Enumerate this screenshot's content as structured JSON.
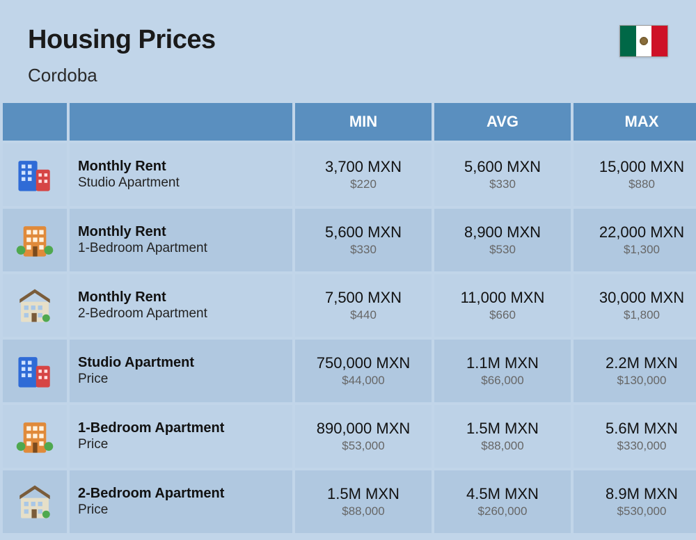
{
  "header": {
    "title": "Housing Prices",
    "subtitle": "Cordoba"
  },
  "columns": {
    "min": "MIN",
    "avg": "AVG",
    "max": "MAX"
  },
  "rows": [
    {
      "icon": "buildings-blue-red",
      "title": "Monthly Rent",
      "subtitle": "Studio Apartment",
      "min": {
        "mxn": "3,700 MXN",
        "usd": "$220"
      },
      "avg": {
        "mxn": "5,600 MXN",
        "usd": "$330"
      },
      "max": {
        "mxn": "15,000 MXN",
        "usd": "$880"
      }
    },
    {
      "icon": "building-orange",
      "title": "Monthly Rent",
      "subtitle": "1-Bedroom Apartment",
      "min": {
        "mxn": "5,600 MXN",
        "usd": "$330"
      },
      "avg": {
        "mxn": "8,900 MXN",
        "usd": "$530"
      },
      "max": {
        "mxn": "22,000 MXN",
        "usd": "$1,300"
      }
    },
    {
      "icon": "house-beige",
      "title": "Monthly Rent",
      "subtitle": "2-Bedroom Apartment",
      "min": {
        "mxn": "7,500 MXN",
        "usd": "$440"
      },
      "avg": {
        "mxn": "11,000 MXN",
        "usd": "$660"
      },
      "max": {
        "mxn": "30,000 MXN",
        "usd": "$1,800"
      }
    },
    {
      "icon": "buildings-blue-red",
      "title": "Studio Apartment",
      "subtitle": "Price",
      "min": {
        "mxn": "750,000 MXN",
        "usd": "$44,000"
      },
      "avg": {
        "mxn": "1.1M MXN",
        "usd": "$66,000"
      },
      "max": {
        "mxn": "2.2M MXN",
        "usd": "$130,000"
      }
    },
    {
      "icon": "building-orange",
      "title": "1-Bedroom Apartment",
      "subtitle": "Price",
      "min": {
        "mxn": "890,000 MXN",
        "usd": "$53,000"
      },
      "avg": {
        "mxn": "1.5M MXN",
        "usd": "$88,000"
      },
      "max": {
        "mxn": "5.6M MXN",
        "usd": "$330,000"
      }
    },
    {
      "icon": "house-beige",
      "title": "2-Bedroom Apartment",
      "subtitle": "Price",
      "min": {
        "mxn": "1.5M MXN",
        "usd": "$88,000"
      },
      "avg": {
        "mxn": "4.5M MXN",
        "usd": "$260,000"
      },
      "max": {
        "mxn": "8.9M MXN",
        "usd": "$530,000"
      }
    }
  ],
  "styling": {
    "page_bg": "#c1d5e9",
    "header_bg": "#5a8fbf",
    "row_bg_a": "#bdd2e7",
    "row_bg_b": "#b0c8e0",
    "title_color": "#1a1a1a",
    "value_color": "#111111",
    "sub_value_color": "#666666",
    "title_fontsize": 38,
    "subtitle_fontsize": 26,
    "col_header_fontsize": 22,
    "row_title_fontsize": 20,
    "value_fontsize": 22,
    "sub_value_fontsize": 17,
    "icon_colors": {
      "buildings-blue-red": {
        "a": "#2f6bd6",
        "b": "#d64545"
      },
      "building-orange": {
        "a": "#e08a3a",
        "b": "#4fa84f"
      },
      "house-beige": {
        "a": "#e6dfc8",
        "b": "#7a5c3a"
      }
    }
  }
}
